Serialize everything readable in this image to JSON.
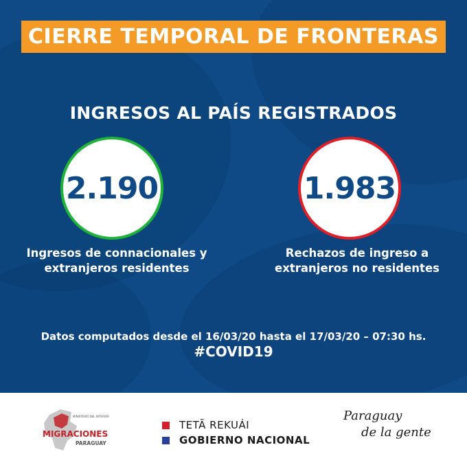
{
  "banner": {
    "title": "CIERRE TEMPORAL DE FRONTERAS"
  },
  "subtitle": "INGRESOS AL PAÍS REGISTRADOS",
  "stats": [
    {
      "value": "2.190",
      "caption_line1": "Ingresos de connacionales y",
      "caption_line2": "extranjeros residentes",
      "color": "#1fb33a"
    },
    {
      "value": "1.983",
      "caption_line1": "Rechazos de ingreso a",
      "caption_line2": "extranjeros no residentes",
      "color": "#e01f26"
    }
  ],
  "note": "Datos computados desde el 16/03/20 hasta el 17/03/20 – 07:30 hs.",
  "hashtag": "#COVID19",
  "footer": {
    "migraciones": {
      "small_text": "MINISTERIO DEL INTERIOR",
      "name": "MIGRACIONES",
      "country": "PARAGUAY"
    },
    "gov_line1": "TETÃ REKUÁI",
    "gov_line2": "GOBIERNO NACIONAL",
    "slogan_line1": "Paraguay",
    "slogan_line2": "de la gente"
  },
  "colors": {
    "background": "#0f4a86",
    "banner": "#f39a27",
    "green": "#1fb33a",
    "red": "#e01f26"
  }
}
